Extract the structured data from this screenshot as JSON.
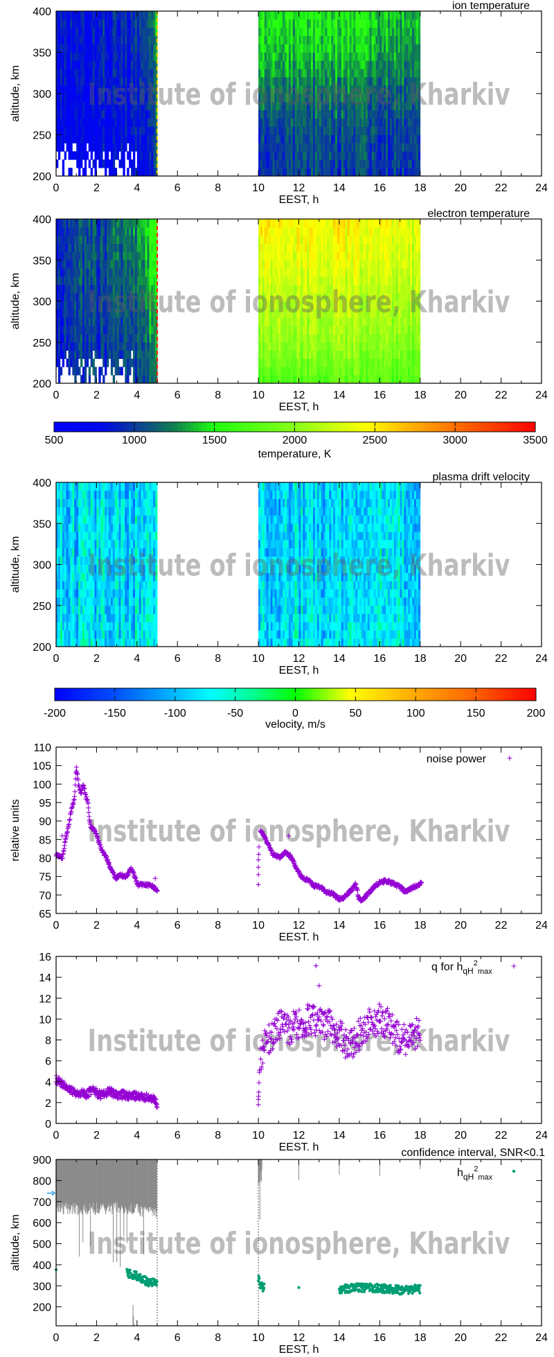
{
  "watermark": "Institute of ionosphere, Kharkiv",
  "colors": {
    "scatter_purple": "#9400d3",
    "h_green": "#009e73",
    "ci_gray": "#8a8a8a",
    "arrow_blue": "#56b4e9"
  },
  "colorbars": [
    {
      "label": "temperature, K",
      "range": [
        500,
        3500
      ],
      "ticks": [
        500,
        1000,
        1500,
        2000,
        2500,
        3000,
        3500
      ],
      "stops": [
        [
          500,
          "#0000ff"
        ],
        [
          800,
          "#0008e8"
        ],
        [
          1000,
          "#0a3a9c"
        ],
        [
          1250,
          "#0f8050"
        ],
        [
          1500,
          "#20ff10"
        ],
        [
          2000,
          "#88ff18"
        ],
        [
          2250,
          "#ccff10"
        ],
        [
          2450,
          "#ffff00"
        ],
        [
          2650,
          "#ffc400"
        ],
        [
          3000,
          "#ff7000"
        ],
        [
          3300,
          "#ff3000"
        ],
        [
          3500,
          "#ff0000"
        ]
      ]
    },
    {
      "label": "velocity, m/s",
      "range": [
        -200,
        200
      ],
      "ticks": [
        -200,
        -150,
        -100,
        -50,
        0,
        50,
        100,
        150,
        200
      ],
      "stops": [
        [
          -200,
          "#0000ff"
        ],
        [
          -150,
          "#0050ff"
        ],
        [
          -100,
          "#00b8ff"
        ],
        [
          -70,
          "#00ffff"
        ],
        [
          -35,
          "#00ff90"
        ],
        [
          0,
          "#00ff00"
        ],
        [
          45,
          "#ffff00"
        ],
        [
          100,
          "#ffa800"
        ],
        [
          150,
          "#ff6000"
        ],
        [
          200,
          "#ff0000"
        ]
      ]
    }
  ],
  "chart_data": [
    {
      "type": "heatmap",
      "title": "ion temperature",
      "xlabel": "EEST, h",
      "ylabel": "altitude, km",
      "xlim": [
        0,
        24
      ],
      "ylim": [
        200,
        400
      ],
      "xticks": [
        0,
        2,
        4,
        6,
        8,
        10,
        12,
        14,
        16,
        18,
        20,
        22,
        24
      ],
      "yticks": [
        200,
        250,
        300,
        350,
        400
      ],
      "colorbar": 0,
      "segments": [
        [
          0,
          5
        ],
        [
          10,
          18
        ]
      ],
      "times": [
        0,
        2,
        4,
        5,
        10,
        12,
        14,
        16,
        18
      ],
      "altitudes": [
        200,
        250,
        300,
        350,
        400
      ],
      "values": [
        [
          650,
          700,
          800,
          1000,
          900,
          1000,
          1000,
          1000,
          950
        ],
        [
          700,
          750,
          850,
          1050,
          950,
          1050,
          1050,
          1050,
          1000
        ],
        [
          750,
          800,
          900,
          1150,
          1200,
          1150,
          1200,
          1150,
          1100
        ],
        [
          800,
          850,
          950,
          1250,
          1400,
          1350,
          1400,
          1350,
          1250
        ],
        [
          800,
          850,
          1000,
          1300,
          1500,
          1450,
          1500,
          1450,
          1350
        ]
      ]
    },
    {
      "type": "heatmap",
      "title": "electron temperature",
      "xlabel": "EEST, h",
      "ylabel": "altitude, km",
      "xlim": [
        0,
        24
      ],
      "ylim": [
        200,
        400
      ],
      "xticks": [
        0,
        2,
        4,
        6,
        8,
        10,
        12,
        14,
        16,
        18,
        20,
        22,
        24
      ],
      "yticks": [
        200,
        250,
        300,
        350,
        400
      ],
      "colorbar": 0,
      "segments": [
        [
          0,
          5
        ],
        [
          10,
          18
        ]
      ],
      "times": [
        0,
        2,
        4,
        5,
        10,
        12,
        14,
        16,
        18
      ],
      "altitudes": [
        200,
        250,
        300,
        350,
        400
      ],
      "values": [
        [
          900,
          950,
          1000,
          1200,
          1700,
          1750,
          1800,
          1750,
          1700
        ],
        [
          950,
          1000,
          1050,
          1300,
          2000,
          2050,
          2050,
          2000,
          1950
        ],
        [
          1000,
          1000,
          1100,
          1450,
          2150,
          2200,
          2200,
          2150,
          2100
        ],
        [
          1000,
          1050,
          1200,
          1600,
          2300,
          2350,
          2350,
          2300,
          2250
        ],
        [
          1000,
          1050,
          1250,
          1700,
          2450,
          2450,
          2450,
          2400,
          2350
        ]
      ]
    },
    {
      "type": "heatmap",
      "title": "plasma drift velocity",
      "xlabel": "EEST, h",
      "ylabel": "altitude, km",
      "xlim": [
        0,
        24
      ],
      "ylim": [
        200,
        400
      ],
      "xticks": [
        0,
        2,
        4,
        6,
        8,
        10,
        12,
        14,
        16,
        18,
        20,
        22,
        24
      ],
      "yticks": [
        200,
        250,
        300,
        350,
        400
      ],
      "colorbar": 1,
      "segments": [
        [
          0,
          5
        ],
        [
          10,
          18
        ]
      ],
      "times": [
        0,
        2,
        4,
        5,
        10,
        12,
        14,
        16,
        18
      ],
      "altitudes": [
        200,
        250,
        300,
        350,
        400
      ],
      "values": [
        [
          -70,
          -85,
          -80,
          -70,
          -80,
          -75,
          -75,
          -75,
          -80
        ],
        [
          -85,
          -90,
          -85,
          -80,
          -85,
          -80,
          -80,
          -80,
          -85
        ],
        [
          -85,
          -85,
          -85,
          -85,
          -85,
          -80,
          -85,
          -80,
          -85
        ],
        [
          -85,
          -85,
          -85,
          -85,
          -85,
          -85,
          -85,
          -80,
          -85
        ],
        [
          -85,
          -85,
          -85,
          -85,
          -85,
          -85,
          -85,
          -85,
          -85
        ]
      ]
    },
    {
      "type": "scatter",
      "xlabel": "EEST. h",
      "ylabel": "relative units",
      "xlim": [
        0,
        24
      ],
      "ylim": [
        65,
        110
      ],
      "xticks": [
        0,
        2,
        4,
        6,
        8,
        10,
        12,
        14,
        16,
        18,
        20,
        22,
        24
      ],
      "yticks": [
        65,
        70,
        75,
        80,
        85,
        90,
        95,
        100,
        105,
        110
      ],
      "legend": {
        "label": "noise power",
        "position": "top-right"
      },
      "series": [
        {
          "name": "noise power",
          "x": [
            0,
            0.09,
            0.32,
            0.44,
            0.61,
            0.78,
            0.9,
            1.0,
            1.12,
            1.24,
            1.35,
            1.47,
            1.58,
            1.64,
            1.72,
            1.93,
            2.1,
            2.27,
            2.5,
            2.73,
            2.96,
            3.19,
            3.42,
            3.59,
            3.7,
            3.88,
            4.05,
            4.33,
            4.68,
            4.91,
            5.02,
            10.1,
            10.26,
            10.49,
            10.72,
            11.07,
            11.3,
            11.59,
            11.87,
            12.1,
            12.45,
            12.8,
            13.02,
            13.37,
            13.71,
            14.0,
            14.29,
            14.63,
            14.8,
            14.98,
            15.15,
            15.44,
            15.78,
            16.01,
            16.35,
            16.7,
            17.04,
            17.28,
            17.62,
            17.85,
            18.08
          ],
          "y": [
            81,
            80.8,
            80,
            84.3,
            88.6,
            93.5,
            96,
            104.6,
            99.5,
            97.5,
            100,
            96.5,
            95,
            91,
            88,
            87.5,
            84.5,
            82,
            80,
            76.7,
            74.5,
            75.5,
            74.8,
            75.8,
            77.5,
            75,
            72.7,
            72.8,
            72.8,
            71.8,
            71.3,
            87.7,
            86,
            83.5,
            81,
            80,
            81.5,
            80.5,
            77.5,
            75,
            74,
            72.3,
            72.3,
            70.8,
            70.2,
            68.8,
            69.5,
            71.5,
            73,
            69,
            68.6,
            70.5,
            72.5,
            73.5,
            73.8,
            73,
            72,
            70.8,
            72,
            72.5,
            73.2
          ],
          "extra_x": [
            10.0,
            10.0,
            10.0,
            10.0,
            10.02,
            10.03,
            0.3,
            11.5,
            4.9
          ],
          "extra_y": [
            72.8,
            75.5,
            77.5,
            79.5,
            81,
            83,
            86,
            86,
            74.5
          ]
        }
      ]
    },
    {
      "type": "scatter",
      "xlabel": "EEST. h",
      "ylabel": "",
      "xlim": [
        0,
        24
      ],
      "ylim": [
        0,
        16
      ],
      "xticks": [
        0,
        2,
        4,
        6,
        8,
        10,
        12,
        14,
        16,
        18,
        20,
        22,
        24
      ],
      "yticks": [
        0,
        2,
        4,
        6,
        8,
        10,
        12,
        14,
        16
      ],
      "legend": {
        "main": "q for h",
        "sub1": "qH",
        "sup": "2",
        "sub2": "max",
        "position": "top-right"
      },
      "series": [
        {
          "name": "q for hqH2max",
          "x": [
            0,
            0.5,
            1,
            1.5,
            1.8,
            2.2,
            2.6,
            3,
            3.5,
            4,
            4.5,
            4.9,
            5,
            10.1,
            10.3,
            10.5,
            11,
            11.5,
            12,
            12.5,
            13,
            13.5,
            14,
            14.5,
            15,
            15.5,
            16,
            16.5,
            17,
            17.5,
            18
          ],
          "y": [
            4.2,
            3.5,
            2.9,
            2.8,
            3.2,
            2.7,
            3.1,
            2.8,
            2.7,
            2.6,
            2.5,
            2.2,
            1.8,
            6.5,
            7.5,
            8,
            9.5,
            9,
            9.5,
            10,
            9.5,
            9.5,
            8.5,
            7.3,
            8.5,
            9.5,
            10,
            9.5,
            8,
            8,
            9
          ],
          "extra_x": [
            10.0,
            10.0,
            10.01,
            10.02,
            10.03,
            10.05,
            10.06,
            12.85,
            13.0
          ],
          "extra_y": [
            1.8,
            2.3,
            2.6,
            3.0,
            3.9,
            4.9,
            5.1,
            15.1,
            13.2
          ]
        }
      ]
    },
    {
      "type": "scatter",
      "title": "confidence interval, SNR<0.1",
      "xlabel": "EEST, h",
      "ylabel": "altitude, km",
      "xlim": [
        0,
        24
      ],
      "ylim": [
        110,
        900
      ],
      "xticks": [
        0,
        2,
        4,
        6,
        8,
        10,
        12,
        14,
        16,
        18,
        20,
        22,
        24
      ],
      "yticks": [
        200,
        300,
        400,
        500,
        600,
        700,
        800,
        900
      ],
      "legend": {
        "main": "h",
        "sub1": "qH",
        "sup": "2",
        "sub2": "max",
        "position": "top-right"
      },
      "marker_left_axis": 740,
      "series": [
        {
          "name": "hqH2max",
          "x": [
            0,
            3.5,
            4,
            4.5,
            5,
            10,
            10.1,
            10.3,
            12,
            14,
            15,
            16,
            17,
            18
          ],
          "y": [
            360,
            360,
            345,
            320,
            310,
            340,
            300,
            290,
            285,
            282,
            292,
            288,
            280,
            285
          ]
        }
      ],
      "confidence_interval": {
        "upper_x": [
          0,
          1,
          2,
          3,
          4,
          5,
          10,
          10.2,
          12,
          14,
          16,
          18
        ],
        "upper_bottom": [
          670,
          665,
          665,
          670,
          660,
          650,
          800,
          830,
          830,
          820,
          820,
          830
        ],
        "lower_x": [
          0,
          3.8,
          3.85,
          5,
          10,
          18
        ],
        "lower_top": [
          205,
          205,
          115,
          115,
          115,
          115
        ]
      }
    }
  ]
}
